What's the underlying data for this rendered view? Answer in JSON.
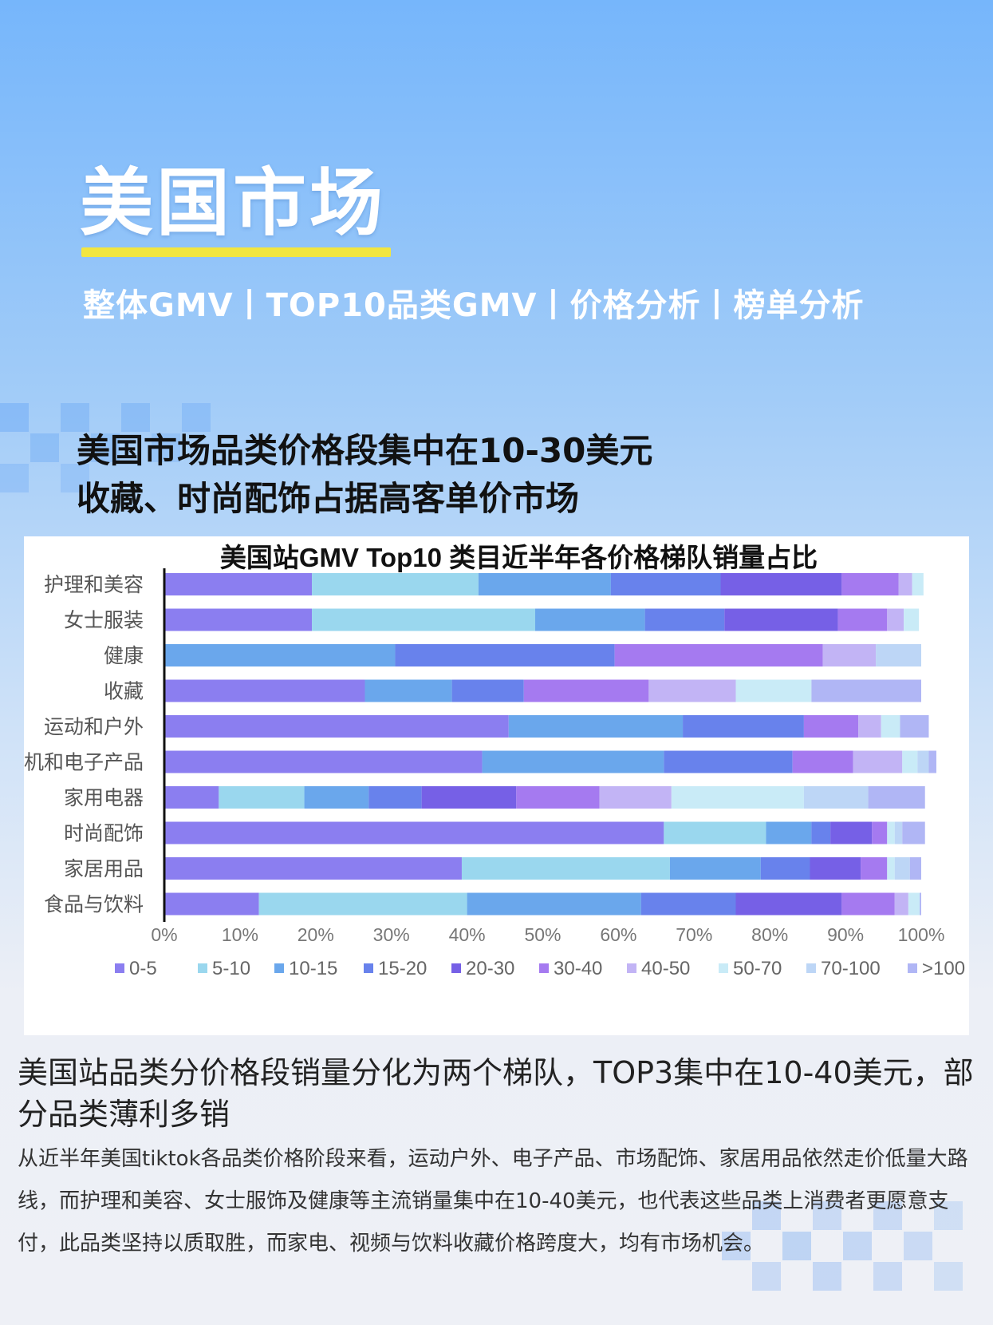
{
  "header": {
    "title": "美国市场",
    "subnav": "整体GMV丨TOP10品类GMV丨价格分析丨榜单分析"
  },
  "headline": {
    "line1": "美国市场品类价格段集中在10-30美元",
    "line2": "收藏、时尚配饰占据高客单价市场"
  },
  "chart_data": {
    "type": "bar",
    "orientation": "horizontal",
    "stacked": true,
    "title": "美国站GMV  Top10  类目近半年各价格梯队销量占比",
    "categories": [
      "护理和美容",
      "女士服装",
      "健康",
      "收藏",
      "运动和户外",
      "机和电子产品",
      "家用电器",
      "时尚配饰",
      "家居用品",
      "食品与饮料"
    ],
    "x_ticks": [
      "0%",
      "10%",
      "20%",
      "30%",
      "40%",
      "50%",
      "60%",
      "70%",
      "80%",
      "90%",
      "100%"
    ],
    "xlim": [
      0,
      100
    ],
    "legend_position": "bottom",
    "series": [
      {
        "name": "0-5",
        "color": "#8b7ef0",
        "values": [
          19.5,
          19.5,
          0,
          26.5,
          45.5,
          42,
          7.2,
          66,
          39.3,
          12.5
        ]
      },
      {
        "name": "5-10",
        "color": "#9ad7ee",
        "values": [
          22,
          29.5,
          0,
          0,
          0,
          0,
          11.3,
          13.5,
          27.5,
          27.5
        ]
      },
      {
        "name": "10-15",
        "color": "#6aa7ec",
        "values": [
          17.5,
          14.5,
          30.5,
          11.5,
          23,
          24,
          8.5,
          6,
          12,
          23
        ]
      },
      {
        "name": "15-20",
        "color": "#6882ec",
        "values": [
          14.5,
          10.5,
          29,
          9.5,
          16,
          17,
          7,
          2.5,
          6.5,
          12.5
        ]
      },
      {
        "name": "20-30",
        "color": "#7660e6",
        "values": [
          16,
          15,
          0,
          0,
          0,
          0,
          12.5,
          5.5,
          6.7,
          14
        ]
      },
      {
        "name": "30-40",
        "color": "#a57af0",
        "values": [
          7.5,
          6.5,
          27.5,
          16.5,
          7.2,
          8,
          11,
          2,
          3.5,
          7
        ]
      },
      {
        "name": "40-50",
        "color": "#c2b4f5",
        "values": [
          1.8,
          2.2,
          7,
          11.5,
          3,
          6.5,
          9.5,
          0,
          0,
          1.8
        ]
      },
      {
        "name": "50-70",
        "color": "#c9ebf7",
        "values": [
          1.5,
          2,
          0,
          10,
          2.5,
          2,
          17.5,
          1,
          1,
          1.5
        ]
      },
      {
        "name": "70-100",
        "color": "#bdd6f6",
        "values": [
          0,
          0,
          6,
          0,
          0,
          1.5,
          8.5,
          1,
          2,
          0
        ]
      },
      {
        "name": ">100",
        "color": "#b0b6f5",
        "values": [
          0,
          0,
          0,
          14.5,
          3.8,
          1,
          7.5,
          3,
          1.5,
          0.2
        ]
      }
    ]
  },
  "summary": {
    "text": "美国站品类分价格段销量分化为两个梯队，TOP3集中在10-40美元，部分品类薄利多销"
  },
  "body": {
    "text": "从近半年美国tiktok各品类价格阶段来看，运动户外、电子产品、市场配饰、家居用品依然走价低量大路线，而护理和美容、女士服饰及健康等主流销量集中在10-40美元，也代表这些品类上消费者更愿意支付，此品类坚持以质取胜，而家电、视频与饮料收藏价格跨度大，均有市场机会。"
  }
}
